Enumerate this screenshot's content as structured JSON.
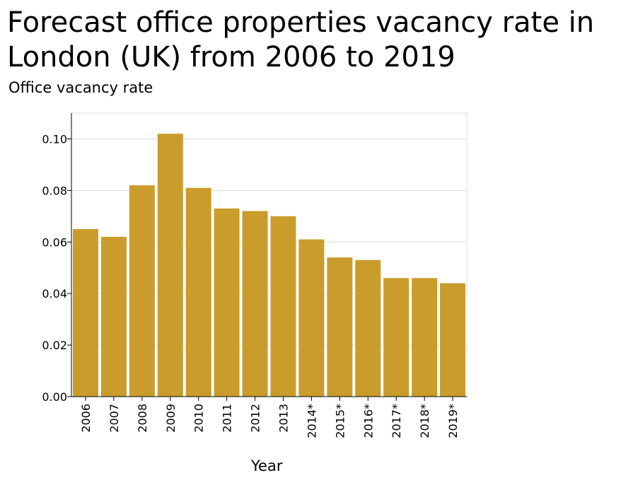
{
  "chart_data": {
    "type": "bar",
    "title": "Forecast office properties vacancy rate in London (UK) from 2006 to 2019",
    "ylabel": "Office vacancy rate",
    "xlabel": "Year",
    "categories": [
      "2006",
      "2007",
      "2008",
      "2009",
      "2010",
      "2011",
      "2012",
      "2013",
      "2014*",
      "2015*",
      "2016*",
      "2017*",
      "2018*",
      "2019*"
    ],
    "values": [
      0.065,
      0.062,
      0.082,
      0.102,
      0.081,
      0.073,
      0.072,
      0.07,
      0.061,
      0.054,
      0.053,
      0.046,
      0.046,
      0.044
    ],
    "ylim": [
      0,
      0.11
    ],
    "yticks": [
      "0.00",
      "0.02",
      "0.04",
      "0.06",
      "0.08",
      "0.10"
    ],
    "grid": true,
    "bar_color": "#c99c2b",
    "grid_color": "#dcdcdc"
  }
}
